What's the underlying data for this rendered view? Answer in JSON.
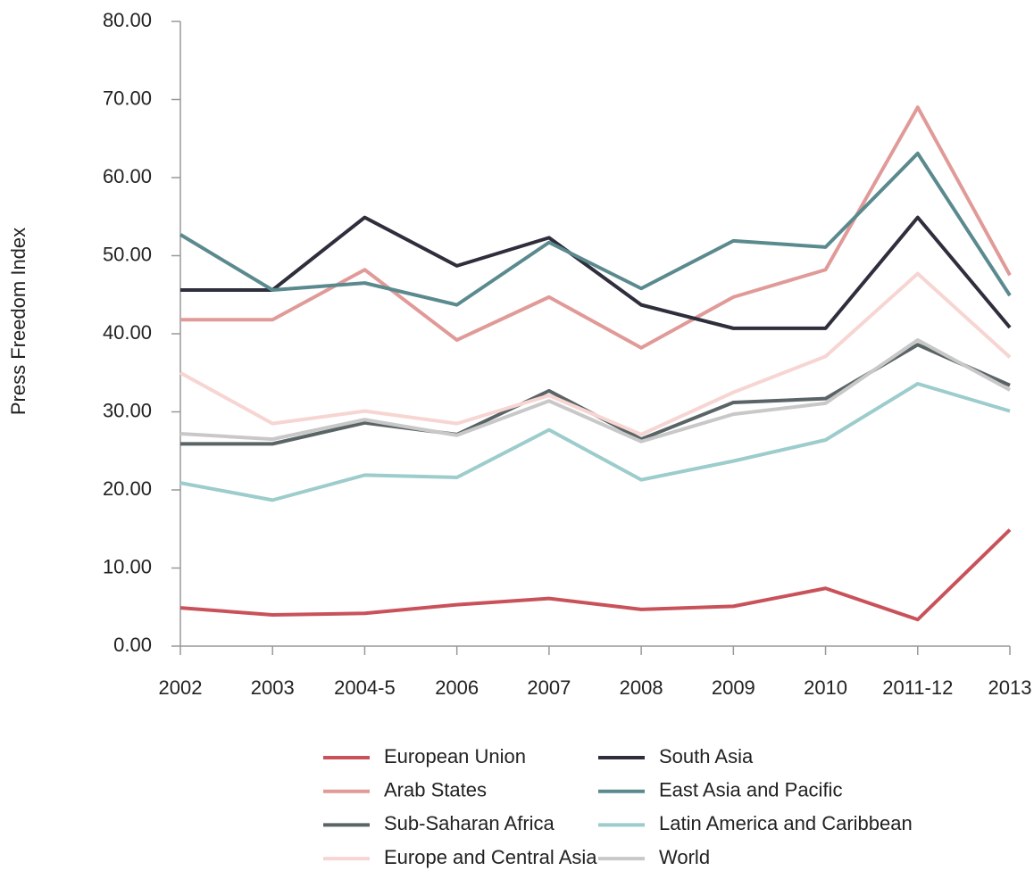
{
  "chart_data": {
    "type": "line",
    "y_label": "Press Freedom Index",
    "categories": [
      "2002",
      "2003",
      "2004-5",
      "2006",
      "2007",
      "2008",
      "2009",
      "2010",
      "2011-12",
      "2013"
    ],
    "series": [
      {
        "name": "European Union",
        "color": "#c9525a",
        "values": [
          4.9,
          4.0,
          4.2,
          5.3,
          6.1,
          4.7,
          5.1,
          7.4,
          3.4,
          14.9
        ]
      },
      {
        "name": "Arab States",
        "color": "#e09a98",
        "values": [
          41.8,
          41.8,
          48.2,
          39.2,
          44.7,
          38.2,
          44.7,
          48.2,
          69.0,
          47.5
        ]
      },
      {
        "name": "Sub-Saharan Africa",
        "color": "#5a6466",
        "values": [
          25.9,
          25.9,
          28.6,
          27.1,
          32.7,
          26.5,
          31.2,
          31.7,
          38.6,
          33.4
        ]
      },
      {
        "name": "Europe and Central Asia",
        "color": "#f6d5d2",
        "values": [
          35.0,
          28.5,
          30.1,
          28.5,
          32.1,
          27.1,
          32.5,
          37.1,
          47.7,
          37.0
        ]
      },
      {
        "name": "South Asia",
        "color": "#2e2e3c",
        "values": [
          45.6,
          45.6,
          54.9,
          48.7,
          52.3,
          43.7,
          40.7,
          40.7,
          54.9,
          40.8
        ]
      },
      {
        "name": "East Asia and Pacific",
        "color": "#5a8a8e",
        "values": [
          52.7,
          45.6,
          46.5,
          43.7,
          51.7,
          45.8,
          51.9,
          51.1,
          63.1,
          44.9
        ]
      },
      {
        "name": "Latin America and Caribbean",
        "color": "#9ccccb",
        "values": [
          20.9,
          18.7,
          21.9,
          21.6,
          27.7,
          21.3,
          23.7,
          26.4,
          33.6,
          30.1
        ]
      },
      {
        "name": "World",
        "color": "#c8c8c8",
        "values": [
          27.2,
          26.5,
          29.0,
          27.0,
          31.4,
          26.2,
          29.7,
          31.1,
          39.2,
          32.8
        ]
      }
    ],
    "ylim": [
      0,
      80
    ],
    "yticks": [
      {
        "value": 0,
        "label": "0.00"
      },
      {
        "value": 10,
        "label": "10.00"
      },
      {
        "value": 20,
        "label": "20.00"
      },
      {
        "value": 30,
        "label": "30.00"
      },
      {
        "value": 40,
        "label": "40.00"
      },
      {
        "value": 50,
        "label": "50.00"
      },
      {
        "value": 60,
        "label": "60.00"
      },
      {
        "value": 70,
        "label": "70.00"
      },
      {
        "value": 80,
        "label": "80.00"
      }
    ],
    "legend": "bottom"
  }
}
